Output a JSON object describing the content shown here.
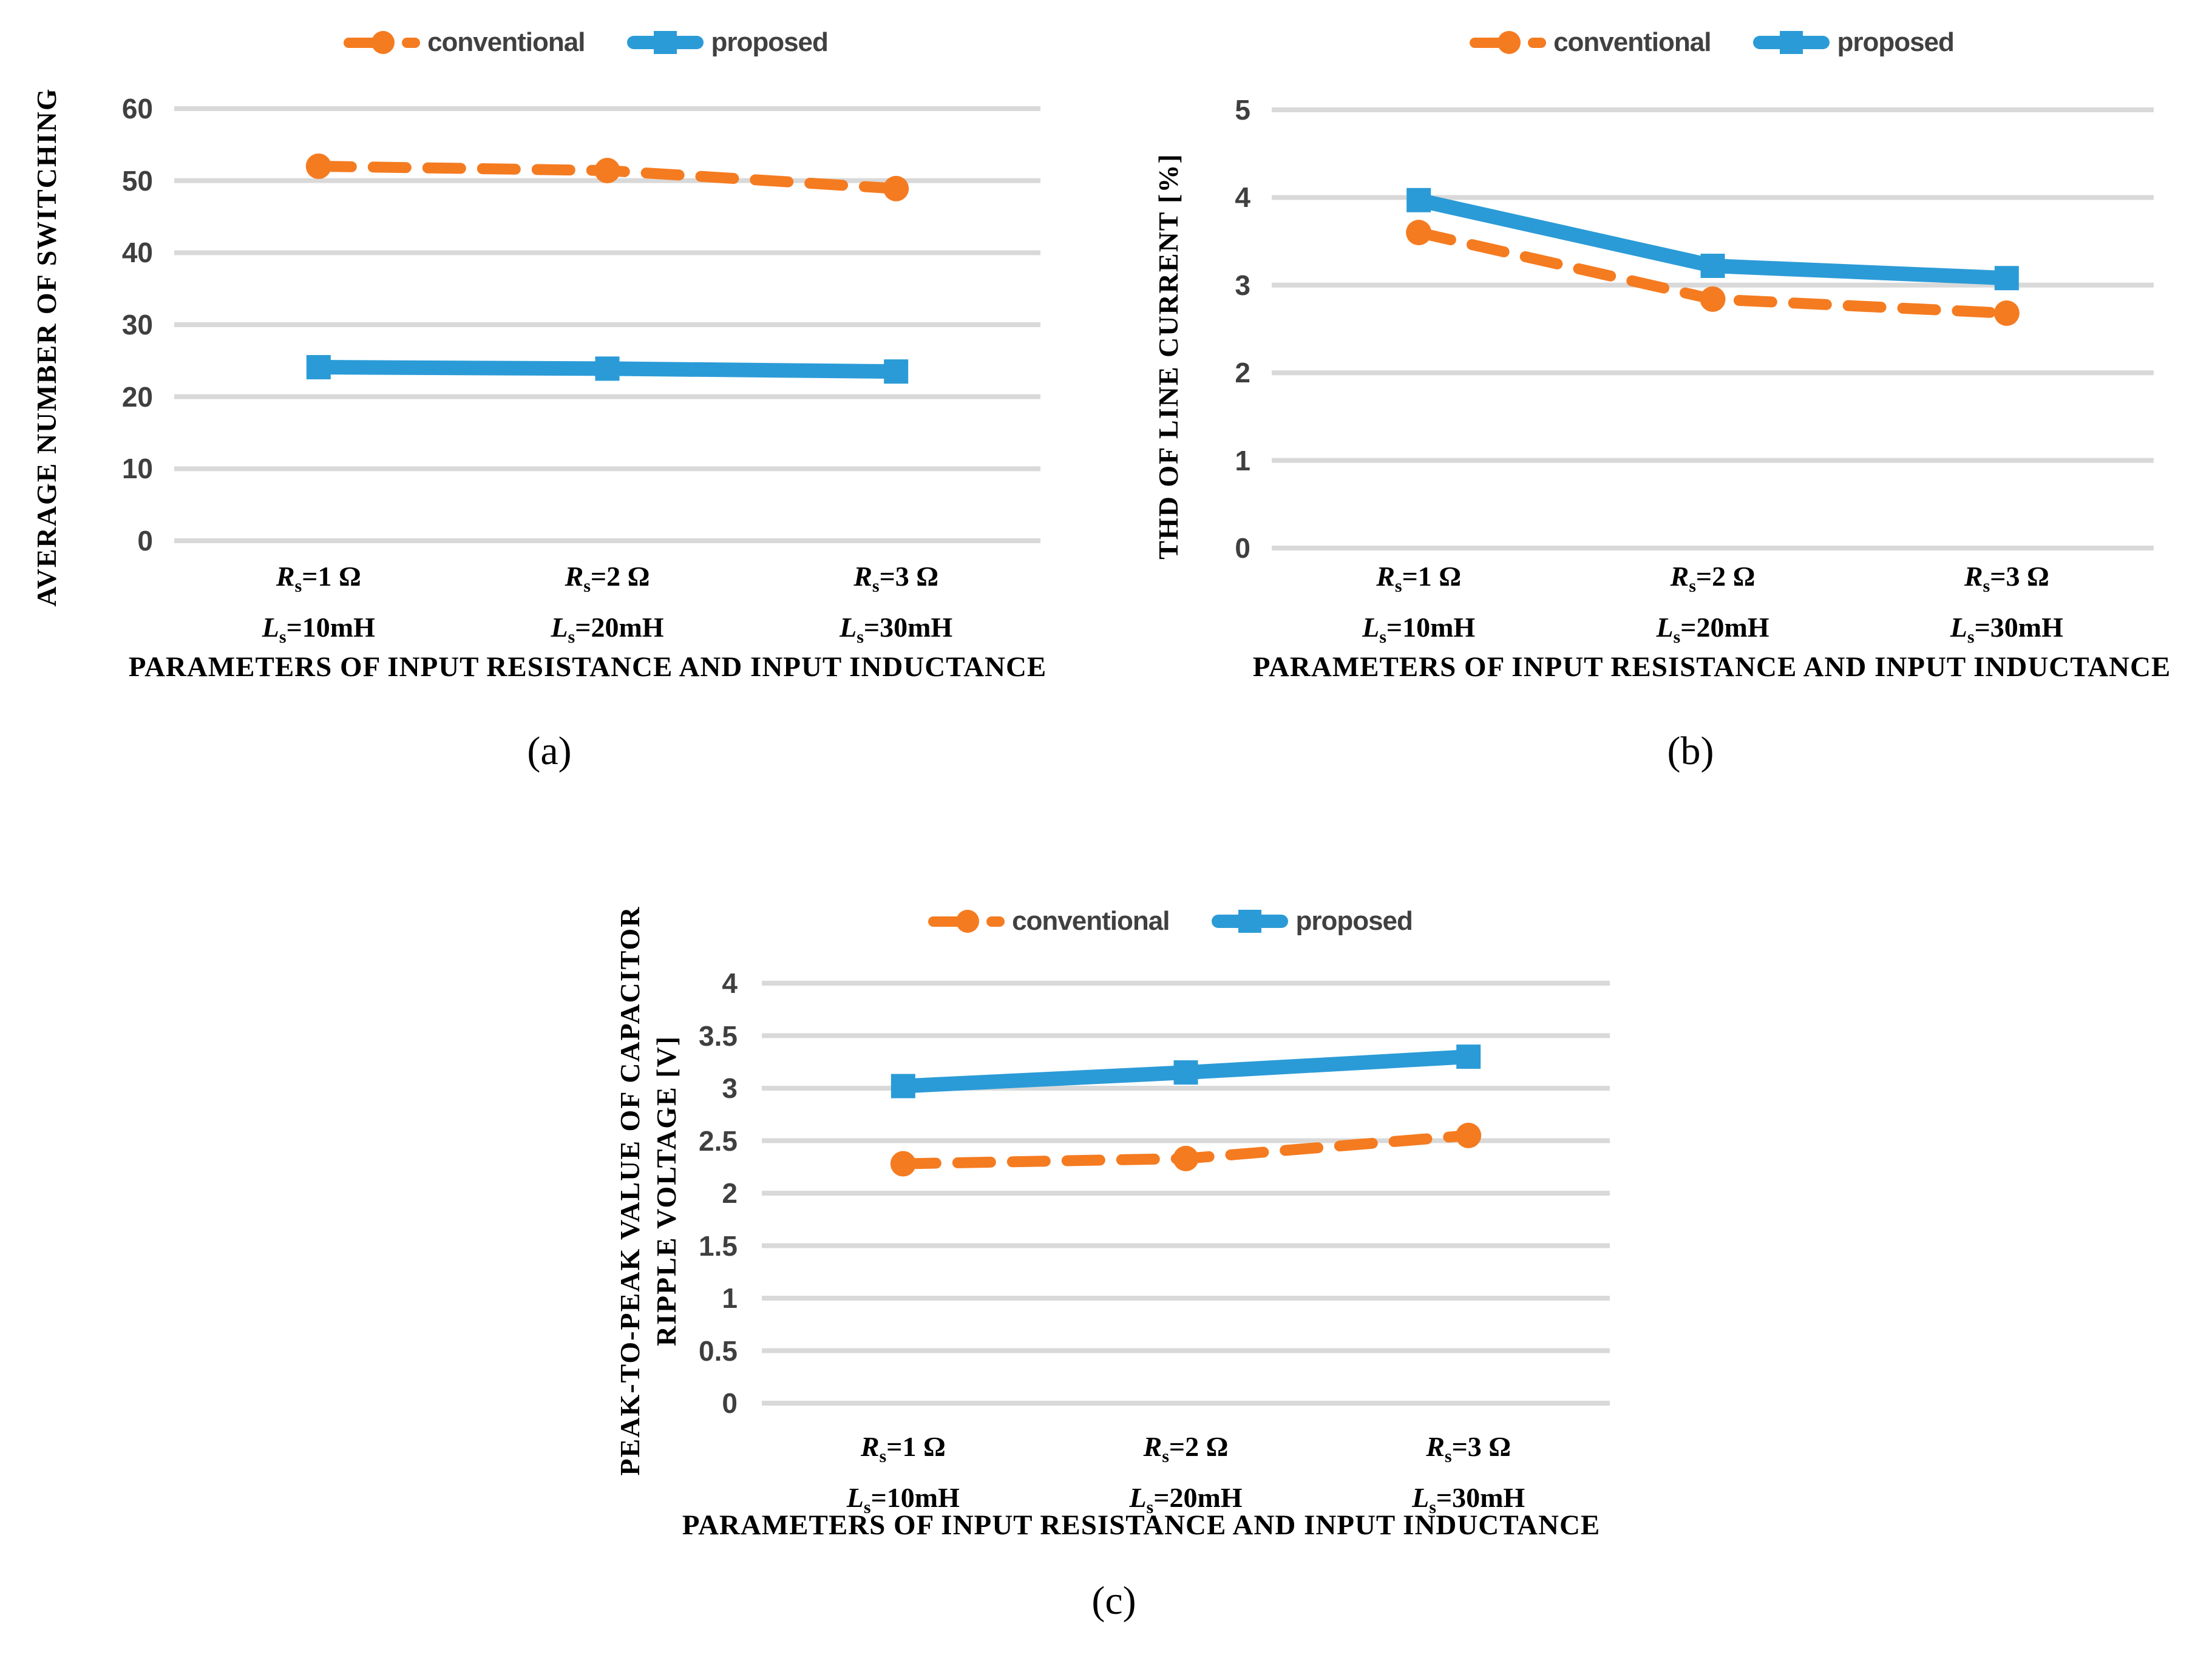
{
  "colors": {
    "conventional": "#F57B20",
    "proposed": "#2B9BD7",
    "grid": "#D9D9D9",
    "tick_text": "#3F3F3F",
    "legend_text": "#404040",
    "axis_text": "#000000",
    "background": "#FFFFFF"
  },
  "chart_data": [
    {
      "id": "a",
      "type": "line",
      "caption": "(a)",
      "ylabel_lines": [
        "AVERAGE NUMBER OF SWITCHING"
      ],
      "xlabel": "PARAMETERS OF INPUT RESISTANCE AND INPUT INDUCTANCE",
      "ylim": [
        0,
        60
      ],
      "ytick_step": 10,
      "grid": true,
      "legend_position": "top-center",
      "categories": [
        {
          "r_sym": "R",
          "r_sub": "s",
          "r_val": "=1 Ω",
          "l_sym": "L",
          "l_sub": "s",
          "l_val": "=10mH"
        },
        {
          "r_sym": "R",
          "r_sub": "s",
          "r_val": "=2 Ω",
          "l_sym": "L",
          "l_sub": "s",
          "l_val": "=20mH"
        },
        {
          "r_sym": "R",
          "r_sub": "s",
          "r_val": "=3 Ω",
          "l_sym": "L",
          "l_sub": "s",
          "l_val": "=30mH"
        }
      ],
      "series": [
        {
          "name": "conventional",
          "color": "#F57B20",
          "line_style": "dashed",
          "marker": "circle",
          "values": [
            52,
            51.4,
            48.9
          ]
        },
        {
          "name": "proposed",
          "color": "#2B9BD7",
          "line_style": "solid",
          "marker": "square",
          "values": [
            24.1,
            23.9,
            23.5
          ]
        }
      ]
    },
    {
      "id": "b",
      "type": "line",
      "caption": "(b)",
      "ylabel_lines": [
        "THD OF LINE CURRENT [%]"
      ],
      "xlabel": "PARAMETERS OF INPUT RESISTANCE AND INPUT INDUCTANCE",
      "ylim": [
        0,
        5
      ],
      "ytick_step": 1,
      "grid": true,
      "legend_position": "top-center",
      "categories": [
        {
          "r_sym": "R",
          "r_sub": "s",
          "r_val": "=1 Ω",
          "l_sym": "L",
          "l_sub": "s",
          "l_val": "=10mH"
        },
        {
          "r_sym": "R",
          "r_sub": "s",
          "r_val": "=2 Ω",
          "l_sym": "L",
          "l_sub": "s",
          "l_val": "=20mH"
        },
        {
          "r_sym": "R",
          "r_sub": "s",
          "r_val": "=3 Ω",
          "l_sym": "L",
          "l_sub": "s",
          "l_val": "=30mH"
        }
      ],
      "series": [
        {
          "name": "conventional",
          "color": "#F57B20",
          "line_style": "dashed",
          "marker": "circle",
          "values": [
            3.6,
            2.84,
            2.68
          ]
        },
        {
          "name": "proposed",
          "color": "#2B9BD7",
          "line_style": "solid",
          "marker": "square",
          "values": [
            3.97,
            3.22,
            3.08
          ]
        }
      ]
    },
    {
      "id": "c",
      "type": "line",
      "caption": "(c)",
      "ylabel_lines": [
        "PEAK-TO-PEAK VALUE OF CAPACITOR",
        "RIPPLE VOLTAGE [V]"
      ],
      "xlabel": "PARAMETERS OF INPUT RESISTANCE AND INPUT INDUCTANCE",
      "ylim": [
        0,
        4
      ],
      "ytick_step": 0.5,
      "grid": true,
      "legend_position": "top-center",
      "categories": [
        {
          "r_sym": "R",
          "r_sub": "s",
          "r_val": "=1 Ω",
          "l_sym": "L",
          "l_sub": "s",
          "l_val": "=10mH"
        },
        {
          "r_sym": "R",
          "r_sub": "s",
          "r_val": "=2 Ω",
          "l_sym": "L",
          "l_sub": "s",
          "l_val": "=20mH"
        },
        {
          "r_sym": "R",
          "r_sub": "s",
          "r_val": "=3 Ω",
          "l_sym": "L",
          "l_sub": "s",
          "l_val": "=30mH"
        }
      ],
      "series": [
        {
          "name": "conventional",
          "color": "#F57B20",
          "line_style": "dashed",
          "marker": "circle",
          "values": [
            2.28,
            2.33,
            2.55
          ]
        },
        {
          "name": "proposed",
          "color": "#2B9BD7",
          "line_style": "solid",
          "marker": "square",
          "values": [
            3.02,
            3.15,
            3.3
          ]
        }
      ]
    }
  ]
}
